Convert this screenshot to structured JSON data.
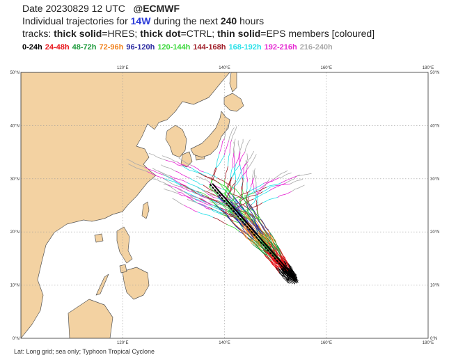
{
  "header": {
    "date_label": "Date 20230829 12 UTC",
    "source": "@ECMWF",
    "line2_prefix": "Individual trajectories for",
    "storm_id": "14W",
    "line2_mid": "during the next",
    "hours": "240",
    "line2_suffix": "hours",
    "tracks_prefix": "tracks:",
    "thick_solid": "thick solid",
    "hres": "=HRES;",
    "thick_dot": "thick dot",
    "ctrl": "=CTRL;",
    "thin_solid": "thin solid",
    "eps": "=EPS members [coloured]"
  },
  "legend": [
    {
      "label": "0-24h",
      "color": "#000000"
    },
    {
      "label": "24-48h",
      "color": "#e8141a"
    },
    {
      "label": "48-72h",
      "color": "#1e9a3c"
    },
    {
      "label": "72-96h",
      "color": "#f0821e"
    },
    {
      "label": "96-120h",
      "color": "#2a2aa0"
    },
    {
      "label": "120-144h",
      "color": "#3cd83c"
    },
    {
      "label": "144-168h",
      "color": "#a01e28"
    },
    {
      "label": "168-192h",
      "color": "#28e0e8"
    },
    {
      "label": "192-216h",
      "color": "#e628d2"
    },
    {
      "label": "216-240h",
      "color": "#aaaaaa"
    }
  ],
  "map": {
    "lon_range": [
      100,
      180
    ],
    "lat_range": [
      0,
      50
    ],
    "lon_ticks": [
      "120°E",
      "140°E",
      "160°E",
      "180°E"
    ],
    "lat_ticks": [
      "0°N",
      "10°N",
      "20°N",
      "30°N",
      "40°N",
      "50°N"
    ],
    "land_color": "#f3d2a2",
    "sea_color": "#ffffff",
    "coast_color": "#555555",
    "grid": true
  },
  "footer": "Lat: Long grid; sea only; Typhoon Tropical Cyclone"
}
